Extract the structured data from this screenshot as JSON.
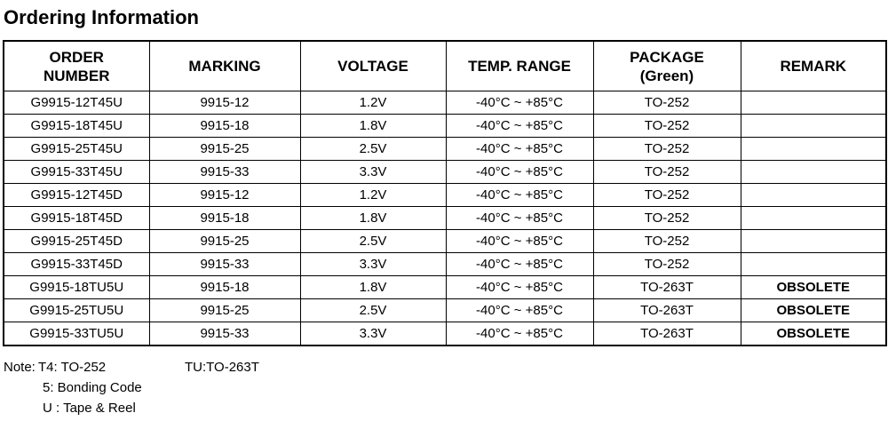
{
  "title": "Ordering Information",
  "table": {
    "headers": [
      {
        "lines": [
          "ORDER",
          "NUMBER"
        ]
      },
      {
        "lines": [
          "MARKING"
        ]
      },
      {
        "lines": [
          "VOLTAGE"
        ]
      },
      {
        "lines": [
          "TEMP. RANGE"
        ]
      },
      {
        "lines": [
          "PACKAGE",
          "(Green)"
        ]
      },
      {
        "lines": [
          "REMARK"
        ]
      }
    ],
    "rows": [
      {
        "order_number": "G9915-12T45U",
        "marking": "9915-12",
        "voltage": "1.2V",
        "temp_range": "-40°C ~ +85°C",
        "package": "TO-252",
        "remark": ""
      },
      {
        "order_number": "G9915-18T45U",
        "marking": "9915-18",
        "voltage": "1.8V",
        "temp_range": "-40°C ~ +85°C",
        "package": "TO-252",
        "remark": ""
      },
      {
        "order_number": "G9915-25T45U",
        "marking": "9915-25",
        "voltage": "2.5V",
        "temp_range": "-40°C ~ +85°C",
        "package": "TO-252",
        "remark": ""
      },
      {
        "order_number": "G9915-33T45U",
        "marking": "9915-33",
        "voltage": "3.3V",
        "temp_range": "-40°C ~ +85°C",
        "package": "TO-252",
        "remark": ""
      },
      {
        "order_number": "G9915-12T45D",
        "marking": "9915-12",
        "voltage": "1.2V",
        "temp_range": "-40°C ~ +85°C",
        "package": "TO-252",
        "remark": ""
      },
      {
        "order_number": "G9915-18T45D",
        "marking": "9915-18",
        "voltage": "1.8V",
        "temp_range": "-40°C ~ +85°C",
        "package": "TO-252",
        "remark": ""
      },
      {
        "order_number": "G9915-25T45D",
        "marking": "9915-25",
        "voltage": "2.5V",
        "temp_range": "-40°C ~ +85°C",
        "package": "TO-252",
        "remark": ""
      },
      {
        "order_number": "G9915-33T45D",
        "marking": "9915-33",
        "voltage": "3.3V",
        "temp_range": "-40°C ~ +85°C",
        "package": "TO-252",
        "remark": ""
      },
      {
        "order_number": "G9915-18TU5U",
        "marking": "9915-18",
        "voltage": "1.8V",
        "temp_range": "-40°C ~ +85°C",
        "package": "TO-263T",
        "remark": "OBSOLETE"
      },
      {
        "order_number": "G9915-25TU5U",
        "marking": "9915-25",
        "voltage": "2.5V",
        "temp_range": "-40°C ~ +85°C",
        "package": "TO-263T",
        "remark": "OBSOLETE"
      },
      {
        "order_number": "G9915-33TU5U",
        "marking": "9915-33",
        "voltage": "3.3V",
        "temp_range": "-40°C ~ +85°C",
        "package": "TO-263T",
        "remark": "OBSOLETE"
      }
    ]
  },
  "notes": {
    "label": "Note:",
    "t4": "T4: TO-252",
    "tu": "TU:TO-263T",
    "bonding": "5: Bonding Code",
    "tape": "U : Tape & Reel"
  }
}
